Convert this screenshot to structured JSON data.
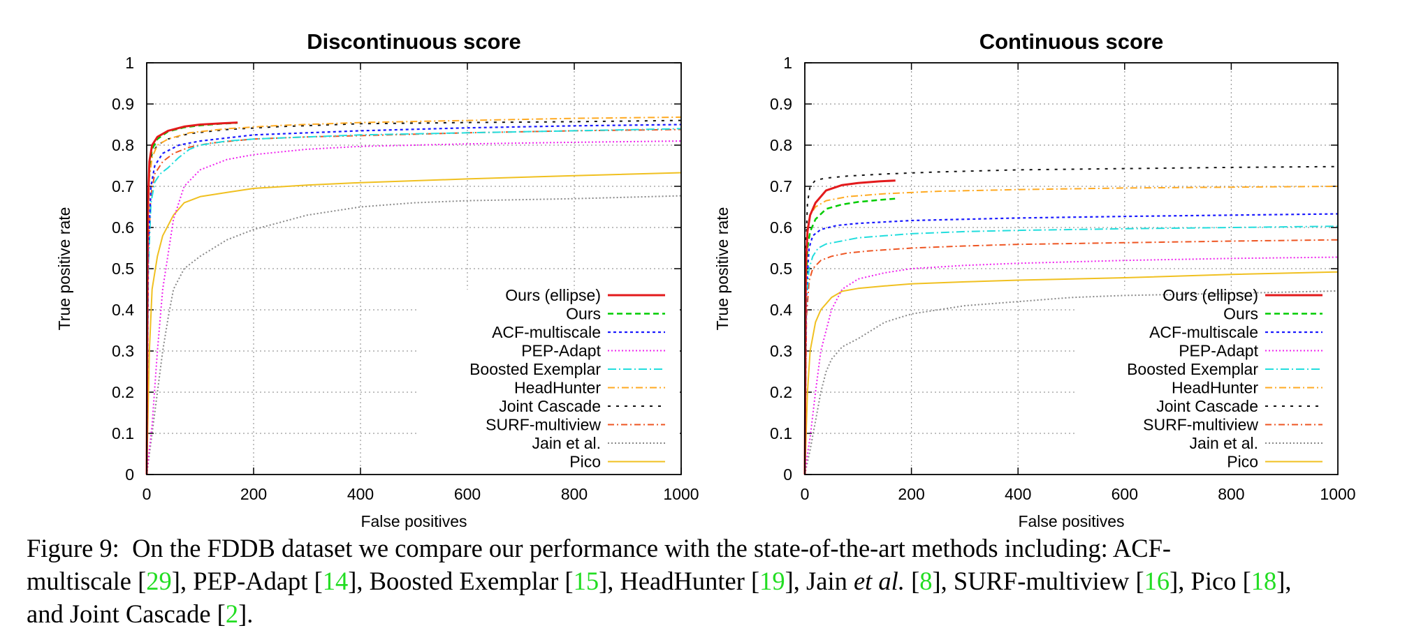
{
  "chart_data": [
    {
      "type": "line",
      "title": "Discontinuous score",
      "xlabel": "False positives",
      "ylabel": "True positive rate",
      "xlim": [
        0,
        1000
      ],
      "ylim": [
        0,
        1
      ],
      "xticks": [
        "0",
        "200",
        "400",
        "600",
        "800",
        "1000"
      ],
      "yticks": [
        "0",
        "0.1",
        "0.2",
        "0.3",
        "0.4",
        "0.5",
        "0.6",
        "0.7",
        "0.8",
        "0.9",
        "1"
      ],
      "grid": true,
      "legend_position": "bottom-right",
      "series": [
        {
          "name": "Ours (ellipse)",
          "x": [
            0,
            2,
            5,
            10,
            20,
            40,
            70,
            100,
            140,
            170
          ],
          "y": [
            0,
            0.64,
            0.76,
            0.8,
            0.82,
            0.835,
            0.845,
            0.85,
            0.853,
            0.855
          ]
        },
        {
          "name": "Ours",
          "x": [
            0,
            2,
            5,
            10,
            20,
            40,
            70,
            100,
            140,
            170
          ],
          "y": [
            0,
            0.62,
            0.75,
            0.79,
            0.815,
            0.833,
            0.843,
            0.848,
            0.852,
            0.854
          ]
        },
        {
          "name": "ACF-multiscale",
          "x": [
            0,
            3,
            8,
            15,
            30,
            60,
            100,
            200,
            400,
            600,
            800,
            1000
          ],
          "y": [
            0,
            0.55,
            0.7,
            0.75,
            0.78,
            0.8,
            0.81,
            0.825,
            0.835,
            0.842,
            0.847,
            0.85
          ]
        },
        {
          "name": "PEP-Adapt",
          "x": [
            0,
            5,
            10,
            20,
            30,
            50,
            70,
            100,
            150,
            200,
            300,
            400,
            600,
            800,
            1000
          ],
          "y": [
            0,
            0.06,
            0.12,
            0.3,
            0.45,
            0.62,
            0.7,
            0.74,
            0.765,
            0.777,
            0.79,
            0.797,
            0.803,
            0.807,
            0.81
          ]
        },
        {
          "name": "Boosted Exemplar",
          "x": [
            0,
            3,
            8,
            15,
            25,
            40,
            60,
            80,
            100,
            150,
            200,
            300,
            400,
            600,
            800,
            1000
          ],
          "y": [
            0,
            0.5,
            0.66,
            0.71,
            0.73,
            0.745,
            0.77,
            0.79,
            0.8,
            0.81,
            0.815,
            0.82,
            0.825,
            0.83,
            0.835,
            0.84
          ]
        },
        {
          "name": "HeadHunter",
          "x": [
            0,
            2,
            5,
            10,
            20,
            40,
            80,
            150,
            250,
            400,
            600,
            800,
            1000
          ],
          "y": [
            0,
            0.58,
            0.72,
            0.77,
            0.8,
            0.815,
            0.83,
            0.84,
            0.848,
            0.855,
            0.86,
            0.865,
            0.868
          ]
        },
        {
          "name": "Joint Cascade",
          "x": [
            0,
            2,
            5,
            10,
            20,
            40,
            80,
            150,
            250,
            400,
            600,
            800,
            1000
          ],
          "y": [
            0,
            0.6,
            0.74,
            0.78,
            0.8,
            0.815,
            0.828,
            0.838,
            0.845,
            0.852,
            0.855,
            0.857,
            0.86
          ]
        },
        {
          "name": "SURF-multiview",
          "x": [
            0,
            3,
            8,
            15,
            30,
            50,
            80,
            120,
            200,
            300,
            400,
            600,
            800,
            1000
          ],
          "y": [
            0,
            0.55,
            0.68,
            0.73,
            0.76,
            0.78,
            0.795,
            0.805,
            0.815,
            0.82,
            0.823,
            0.83,
            0.835,
            0.838
          ]
        },
        {
          "name": "Jain et al.",
          "x": [
            0,
            10,
            20,
            30,
            40,
            50,
            70,
            100,
            150,
            200,
            300,
            400,
            500,
            600,
            800,
            1000
          ],
          "y": [
            0,
            0.1,
            0.2,
            0.3,
            0.38,
            0.45,
            0.5,
            0.53,
            0.57,
            0.595,
            0.63,
            0.65,
            0.66,
            0.665,
            0.67,
            0.677
          ]
        },
        {
          "name": "Pico",
          "x": [
            0,
            5,
            10,
            20,
            30,
            50,
            70,
            100,
            150,
            200,
            300,
            400,
            600,
            800,
            1000
          ],
          "y": [
            0,
            0.3,
            0.45,
            0.53,
            0.58,
            0.63,
            0.66,
            0.675,
            0.685,
            0.695,
            0.703,
            0.709,
            0.718,
            0.726,
            0.733
          ]
        }
      ]
    },
    {
      "type": "line",
      "title": "Continuous score",
      "xlabel": "False positives",
      "ylabel": "True positive rate",
      "xlim": [
        0,
        1000
      ],
      "ylim": [
        0,
        1
      ],
      "xticks": [
        "0",
        "200",
        "400",
        "600",
        "800",
        "1000"
      ],
      "yticks": [
        "0",
        "0.1",
        "0.2",
        "0.3",
        "0.4",
        "0.5",
        "0.6",
        "0.7",
        "0.8",
        "0.9",
        "1"
      ],
      "grid": true,
      "legend_position": "bottom-right",
      "series": [
        {
          "name": "Ours (ellipse)",
          "x": [
            0,
            2,
            5,
            10,
            20,
            40,
            70,
            100,
            140,
            170
          ],
          "y": [
            0,
            0.5,
            0.59,
            0.63,
            0.66,
            0.69,
            0.703,
            0.708,
            0.712,
            0.714
          ]
        },
        {
          "name": "Ours",
          "x": [
            0,
            2,
            5,
            10,
            20,
            40,
            70,
            100,
            140,
            170
          ],
          "y": [
            0,
            0.45,
            0.55,
            0.59,
            0.62,
            0.645,
            0.656,
            0.662,
            0.667,
            0.67
          ]
        },
        {
          "name": "ACF-multiscale",
          "x": [
            0,
            3,
            8,
            15,
            30,
            60,
            100,
            200,
            400,
            600,
            800,
            1000
          ],
          "y": [
            0,
            0.45,
            0.55,
            0.58,
            0.595,
            0.605,
            0.61,
            0.617,
            0.623,
            0.627,
            0.63,
            0.633
          ]
        },
        {
          "name": "PEP-Adapt",
          "x": [
            0,
            5,
            10,
            20,
            30,
            50,
            70,
            100,
            150,
            200,
            300,
            400,
            600,
            800,
            1000
          ],
          "y": [
            0,
            0.05,
            0.09,
            0.2,
            0.3,
            0.4,
            0.45,
            0.475,
            0.49,
            0.5,
            0.508,
            0.513,
            0.52,
            0.525,
            0.528
          ]
        },
        {
          "name": "Boosted Exemplar",
          "x": [
            0,
            3,
            8,
            15,
            25,
            40,
            60,
            100,
            150,
            200,
            300,
            400,
            600,
            800,
            1000
          ],
          "y": [
            0,
            0.42,
            0.5,
            0.53,
            0.55,
            0.56,
            0.565,
            0.575,
            0.58,
            0.585,
            0.59,
            0.593,
            0.597,
            0.6,
            0.603
          ]
        },
        {
          "name": "HeadHunter",
          "x": [
            0,
            2,
            5,
            10,
            20,
            40,
            80,
            150,
            250,
            400,
            600,
            800,
            1000
          ],
          "y": [
            0,
            0.5,
            0.6,
            0.63,
            0.65,
            0.665,
            0.675,
            0.682,
            0.688,
            0.692,
            0.696,
            0.698,
            0.7
          ]
        },
        {
          "name": "Joint Cascade",
          "x": [
            0,
            2,
            5,
            10,
            20,
            40,
            80,
            150,
            250,
            400,
            600,
            800,
            1000
          ],
          "y": [
            0,
            0.55,
            0.66,
            0.7,
            0.715,
            0.72,
            0.725,
            0.73,
            0.735,
            0.74,
            0.743,
            0.746,
            0.748
          ]
        },
        {
          "name": "SURF-multiview",
          "x": [
            0,
            3,
            8,
            15,
            30,
            50,
            80,
            120,
            200,
            300,
            400,
            600,
            800,
            1000
          ],
          "y": [
            0,
            0.38,
            0.47,
            0.5,
            0.52,
            0.53,
            0.538,
            0.543,
            0.55,
            0.555,
            0.559,
            0.563,
            0.567,
            0.57
          ]
        },
        {
          "name": "Jain et al.",
          "x": [
            0,
            10,
            20,
            30,
            40,
            50,
            70,
            100,
            150,
            200,
            300,
            400,
            500,
            600,
            800,
            1000
          ],
          "y": [
            0,
            0.06,
            0.13,
            0.2,
            0.25,
            0.28,
            0.31,
            0.33,
            0.37,
            0.39,
            0.41,
            0.42,
            0.43,
            0.435,
            0.44,
            0.446
          ]
        },
        {
          "name": "Pico",
          "x": [
            0,
            5,
            10,
            20,
            30,
            50,
            70,
            100,
            150,
            200,
            300,
            400,
            600,
            800,
            1000
          ],
          "y": [
            0,
            0.2,
            0.3,
            0.37,
            0.4,
            0.43,
            0.445,
            0.452,
            0.458,
            0.463,
            0.468,
            0.472,
            0.478,
            0.486,
            0.492
          ]
        }
      ]
    }
  ],
  "series_styles": [
    {
      "color": "#e31a1c",
      "dash": "none",
      "width": 3
    },
    {
      "color": "#00cc00",
      "dash": "8,5",
      "width": 2.5
    },
    {
      "color": "#1a1aff",
      "dash": "4,4",
      "width": 2.2
    },
    {
      "color": "#ee22ee",
      "dash": "2,3",
      "width": 2
    },
    {
      "color": "#22dddd",
      "dash": "12,4,2,4",
      "width": 2
    },
    {
      "color": "#ffaa22",
      "dash": "10,4,2,4",
      "width": 2
    },
    {
      "color": "#111111",
      "dash": "4,8",
      "width": 2
    },
    {
      "color": "#ee5522",
      "dash": "9,4,2,4",
      "width": 2
    },
    {
      "color": "#888888",
      "dash": "2,3",
      "width": 2
    },
    {
      "color": "#f0c020",
      "dash": "none",
      "width": 2
    }
  ],
  "caption": {
    "label": "Figure 9:",
    "text_1": "On the FDDB dataset we compare our performance with the state-of-the-art methods including: ACF-",
    "text_2a": "multiscale [",
    "ref_1": "29",
    "text_2b": "], PEP-Adapt [",
    "ref_2": "14",
    "text_2c": "], Boosted Exemplar [",
    "ref_3": "15",
    "text_2d": "], HeadHunter [",
    "ref_4": "19",
    "text_2e": "], Jain ",
    "et_al": "et al.",
    "text_2f": " [",
    "ref_5": "8",
    "text_2g": "], SURF-multiview [",
    "ref_6": "16",
    "text_2h": "], Pico [",
    "ref_7": "18",
    "text_2i": "],",
    "text_3a": "and Joint Cascade [",
    "ref_8": "2",
    "text_3b": "]."
  }
}
